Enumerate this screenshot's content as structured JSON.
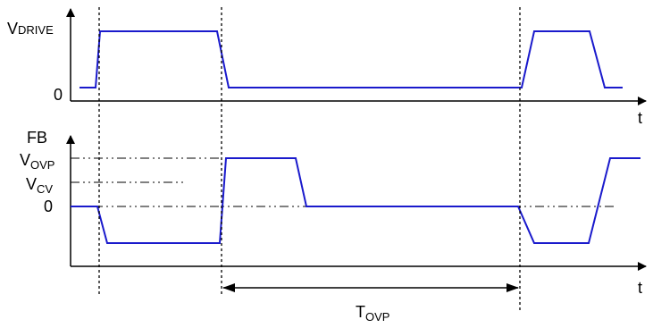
{
  "top_panel": {
    "y_label_main": "V",
    "y_label_sub": "DRIVE",
    "zero_label": "0",
    "x_label": "t"
  },
  "bottom_panel": {
    "y_label": "FB",
    "vovp_main": "V",
    "vovp_sub": "OVP",
    "vcv_main": "V",
    "vcv_sub": "CV",
    "zero_label": "0",
    "x_label": "t"
  },
  "interval": {
    "label_main": "T",
    "label_sub": "OVP"
  },
  "colors": {
    "waveform": "#1a1acc",
    "axes": "#000000"
  }
}
